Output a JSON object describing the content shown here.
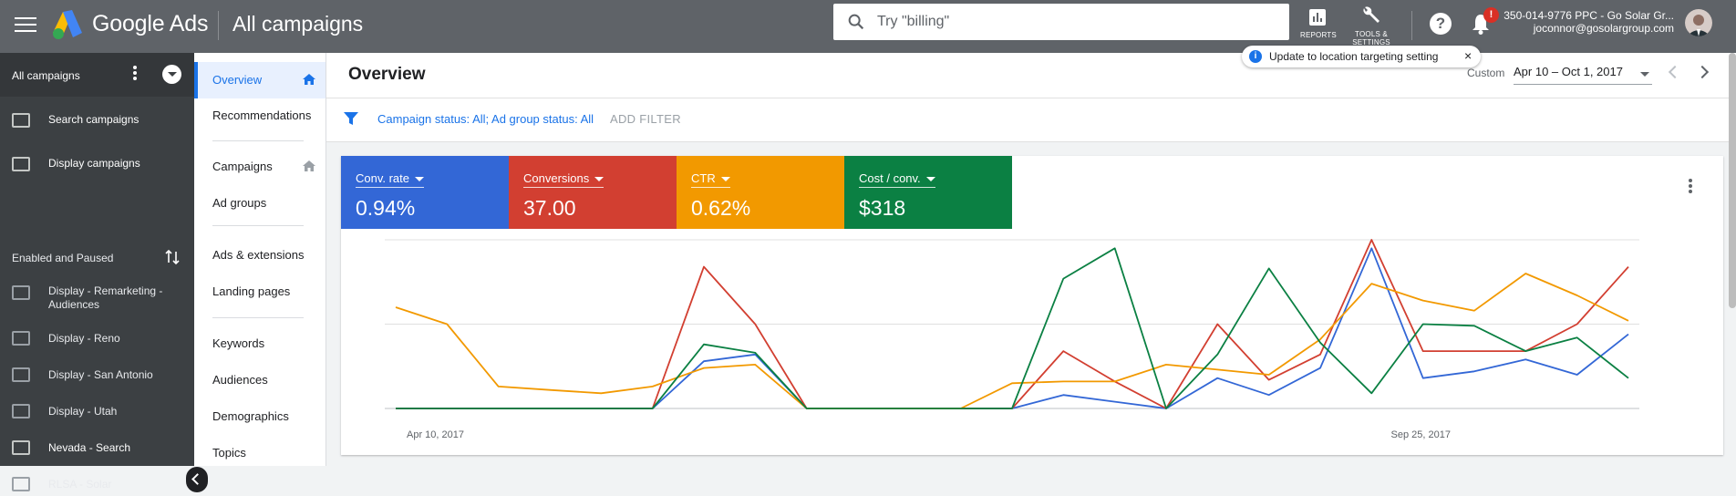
{
  "app": {
    "brand": "Google Ads",
    "page_title": "All campaigns"
  },
  "search": {
    "placeholder": "Try \"billing\""
  },
  "toolbar": {
    "reports_label": "REPORTS",
    "tools_label_1": "TOOLS &",
    "tools_label_2": "SETTINGS",
    "notification_count": "!"
  },
  "account": {
    "name": "350-014-9776 PPC - Go Solar Gr...",
    "email": "joconnor@gosolargroup.com"
  },
  "sidebar": {
    "header": "All campaigns",
    "top_items": [
      {
        "label": "Search campaigns",
        "icon": "search-campaign-icon"
      },
      {
        "label": "Display campaigns",
        "icon": "display-campaign-icon"
      }
    ],
    "section_label": "Enabled and Paused",
    "campaigns": [
      {
        "label": "Display - Remarketing - Audiences",
        "icon": "display-campaign-icon"
      },
      {
        "label": "Display - Reno",
        "icon": "display-campaign-icon"
      },
      {
        "label": "Display - San Antonio",
        "icon": "display-campaign-icon"
      },
      {
        "label": "Display - Utah",
        "icon": "display-campaign-icon"
      },
      {
        "label": "Nevada - Search",
        "icon": "search-campaign-icon"
      },
      {
        "label": "RLSA - Solar",
        "icon": "search-campaign-icon"
      }
    ]
  },
  "nav": {
    "items": [
      "Overview",
      "Recommendations",
      "Campaigns",
      "Ad groups",
      "Ads & extensions",
      "Landing pages",
      "Keywords",
      "Audiences",
      "Demographics",
      "Topics"
    ],
    "active": "Overview"
  },
  "overview": {
    "title": "Overview",
    "date_label": "Custom",
    "date_range": "Apr 10 – Oct 1, 2017"
  },
  "filter": {
    "campaign_status_label": "Campaign status: ",
    "campaign_status_value": "All",
    "ad_group_status_label": "; Ad group status: ",
    "ad_group_status_value": "All",
    "add_filter": "ADD FILTER"
  },
  "toast": {
    "text": "Update to location targeting setting",
    "close": "×"
  },
  "metrics": [
    {
      "name": "Conv. rate",
      "value": "0.94%",
      "color": "#3367d6"
    },
    {
      "name": "Conversions",
      "value": "37.00",
      "color": "#d23f31"
    },
    {
      "name": "CTR",
      "value": "0.62%",
      "color": "#f29900"
    },
    {
      "name": "Cost / conv.",
      "value": "$318",
      "color": "#0b8043"
    }
  ],
  "chart_data": {
    "type": "line",
    "x_start_label": "Apr 10, 2017",
    "x_end_label": "Sep 25, 2017",
    "points": 25,
    "ylim": [
      0,
      100
    ],
    "grid": true,
    "series": [
      {
        "name": "Conv. rate",
        "color": "#3367d6",
        "values": [
          0,
          0,
          0,
          0,
          0,
          0,
          28,
          32,
          0,
          0,
          0,
          0,
          0,
          8,
          4,
          0,
          18,
          8,
          24,
          95,
          18,
          22,
          29,
          20,
          44
        ]
      },
      {
        "name": "Conversions",
        "color": "#d23f31",
        "values": [
          0,
          0,
          0,
          0,
          0,
          0,
          84,
          50,
          0,
          0,
          0,
          0,
          0,
          34,
          16,
          0,
          50,
          17,
          32,
          100,
          34,
          34,
          34,
          50,
          84
        ]
      },
      {
        "name": "CTR",
        "color": "#f29900",
        "values": [
          60,
          50,
          13,
          11,
          9,
          13,
          24,
          26,
          0,
          0,
          0,
          0,
          15,
          16,
          16,
          26,
          23,
          20,
          41,
          74,
          64,
          58,
          80,
          67,
          52
        ]
      },
      {
        "name": "Cost / conv.",
        "color": "#0b8043",
        "values": [
          0,
          0,
          0,
          0,
          0,
          0,
          38,
          33,
          0,
          0,
          0,
          0,
          0,
          77,
          95,
          0,
          32,
          83,
          39,
          9,
          50,
          49,
          34,
          42,
          18
        ]
      }
    ]
  }
}
